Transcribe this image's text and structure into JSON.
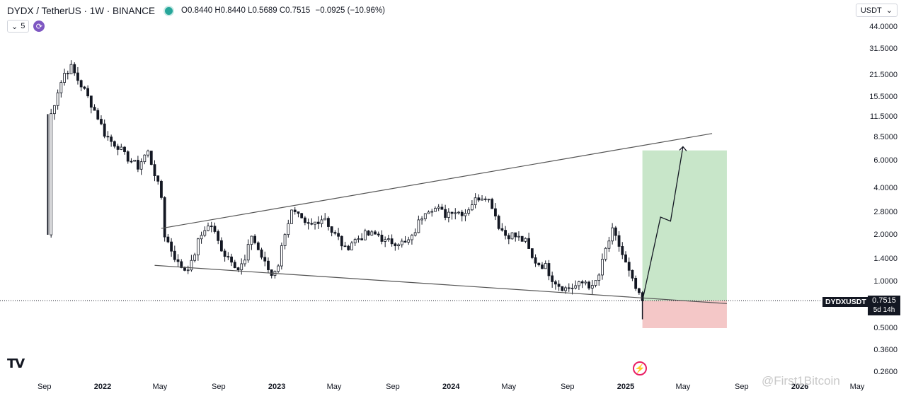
{
  "header": {
    "symbol": "DYDX / TetherUS · 1W · BINANCE",
    "open": "O0.8440",
    "high": "H0.8440",
    "low": "L0.5689",
    "close": "C0.7515",
    "change": "−0.0925 (−10.96%)",
    "status_color": "#26a69a"
  },
  "controls": {
    "interval_chevron": "⌄",
    "interval_value": "5",
    "sync_icon": "sync-icon"
  },
  "currency": {
    "label": "USDT",
    "chevron": "⌄"
  },
  "price_label": {
    "symbol": "DYDXUSDT",
    "value": "0.7515",
    "countdown": "5d 14h"
  },
  "logo_text": "TV",
  "watermark": "@First1Bitcoin",
  "colors": {
    "up": "#131722",
    "down": "#131722",
    "target_zone": "#c8e6c9",
    "stop_zone": "#f4c7c7",
    "line": "#555555"
  },
  "chart_data": {
    "type": "candlestick",
    "y_scale": "log",
    "y_axis_ticks": [
      {
        "label": "44.0000",
        "value": 44
      },
      {
        "label": "31.5000",
        "value": 31.5
      },
      {
        "label": "21.5000",
        "value": 21.5
      },
      {
        "label": "15.5000",
        "value": 15.5
      },
      {
        "label": "11.5000",
        "value": 11.5
      },
      {
        "label": "8.5000",
        "value": 8.5
      },
      {
        "label": "6.0000",
        "value": 6
      },
      {
        "label": "4.0000",
        "value": 4
      },
      {
        "label": "2.8000",
        "value": 2.8
      },
      {
        "label": "2.0000",
        "value": 2
      },
      {
        "label": "1.4000",
        "value": 1.4
      },
      {
        "label": "1.0000",
        "value": 1
      },
      {
        "label": "0.5000",
        "value": 0.5
      },
      {
        "label": "0.3600",
        "value": 0.36
      },
      {
        "label": "0.2600",
        "value": 0.26
      }
    ],
    "x_axis_ticks": [
      {
        "label": "Sep",
        "date": "2021-09-01",
        "bold": false
      },
      {
        "label": "2022",
        "date": "2022-01-01",
        "bold": true
      },
      {
        "label": "May",
        "date": "2022-05-01",
        "bold": false
      },
      {
        "label": "Sep",
        "date": "2022-09-01",
        "bold": false
      },
      {
        "label": "2023",
        "date": "2023-01-01",
        "bold": true
      },
      {
        "label": "May",
        "date": "2023-05-01",
        "bold": false
      },
      {
        "label": "Sep",
        "date": "2023-09-01",
        "bold": false
      },
      {
        "label": "2024",
        "date": "2024-01-01",
        "bold": true
      },
      {
        "label": "May",
        "date": "2024-05-01",
        "bold": false
      },
      {
        "label": "Sep",
        "date": "2024-09-01",
        "bold": false
      },
      {
        "label": "2025",
        "date": "2025-01-01",
        "bold": true
      },
      {
        "label": "May",
        "date": "2025-05-01",
        "bold": false
      },
      {
        "label": "Sep",
        "date": "2025-09-01",
        "bold": false
      },
      {
        "label": "2026",
        "date": "2026-01-01",
        "bold": true
      },
      {
        "label": "May",
        "date": "2026-05-01",
        "bold": false
      }
    ],
    "close_path": [
      [
        "2021-09-08",
        2.0
      ],
      [
        "2021-09-15",
        12
      ],
      [
        "2021-09-29",
        17
      ],
      [
        "2021-10-13",
        22
      ],
      [
        "2021-10-27",
        24
      ],
      [
        "2021-11-10",
        20
      ],
      [
        "2021-11-24",
        17
      ],
      [
        "2021-12-08",
        14
      ],
      [
        "2021-12-22",
        11.5
      ],
      [
        "2022-01-05",
        9.0
      ],
      [
        "2022-01-19",
        8.0
      ],
      [
        "2022-02-02",
        7.5
      ],
      [
        "2022-02-16",
        6.5
      ],
      [
        "2022-03-02",
        6.0
      ],
      [
        "2022-03-16",
        5.5
      ],
      [
        "2022-03-30",
        6.5
      ],
      [
        "2022-04-06",
        6.8
      ],
      [
        "2022-04-20",
        5.0
      ],
      [
        "2022-05-04",
        3.5
      ],
      [
        "2022-05-11",
        2.0
      ],
      [
        "2022-05-25",
        1.6
      ],
      [
        "2022-06-08",
        1.3
      ],
      [
        "2022-06-22",
        1.2
      ],
      [
        "2022-07-06",
        1.3
      ],
      [
        "2022-07-20",
        1.8
      ],
      [
        "2022-08-03",
        2.2
      ],
      [
        "2022-08-17",
        2.3
      ],
      [
        "2022-08-31",
        1.8
      ],
      [
        "2022-09-14",
        1.5
      ],
      [
        "2022-09-28",
        1.4
      ],
      [
        "2022-10-12",
        1.2
      ],
      [
        "2022-10-26",
        1.35
      ],
      [
        "2022-11-09",
        2.0
      ],
      [
        "2022-11-23",
        1.6
      ],
      [
        "2022-12-07",
        1.3
      ],
      [
        "2022-12-21",
        1.1
      ],
      [
        "2023-01-04",
        1.3
      ],
      [
        "2023-01-18",
        2.1
      ],
      [
        "2023-02-01",
        2.8
      ],
      [
        "2023-02-15",
        2.6
      ],
      [
        "2023-03-01",
        2.3
      ],
      [
        "2023-03-15",
        2.3
      ],
      [
        "2023-03-29",
        2.5
      ],
      [
        "2023-04-12",
        2.6
      ],
      [
        "2023-04-26",
        2.1
      ],
      [
        "2023-05-10",
        1.9
      ],
      [
        "2023-05-24",
        1.6
      ],
      [
        "2023-06-07",
        1.8
      ],
      [
        "2023-06-21",
        1.9
      ],
      [
        "2023-07-05",
        2.0
      ],
      [
        "2023-07-19",
        2.0
      ],
      [
        "2023-08-02",
        2.0
      ],
      [
        "2023-08-16",
        1.8
      ],
      [
        "2023-08-30",
        1.8
      ],
      [
        "2023-09-13",
        1.8
      ],
      [
        "2023-09-27",
        1.75
      ],
      [
        "2023-10-11",
        1.9
      ],
      [
        "2023-10-25",
        2.4
      ],
      [
        "2023-11-08",
        2.9
      ],
      [
        "2023-11-22",
        3.0
      ],
      [
        "2023-12-06",
        2.9
      ],
      [
        "2023-12-20",
        2.7
      ],
      [
        "2024-01-03",
        2.9
      ],
      [
        "2024-01-17",
        2.8
      ],
      [
        "2024-01-31",
        2.8
      ],
      [
        "2024-02-14",
        3.2
      ],
      [
        "2024-02-28",
        3.5
      ],
      [
        "2024-03-13",
        3.6
      ],
      [
        "2024-03-27",
        3.1
      ],
      [
        "2024-04-10",
        2.3
      ],
      [
        "2024-04-24",
        2.0
      ],
      [
        "2024-05-08",
        2.0
      ],
      [
        "2024-05-22",
        1.9
      ],
      [
        "2024-06-05",
        1.8
      ],
      [
        "2024-06-19",
        1.4
      ],
      [
        "2024-07-03",
        1.3
      ],
      [
        "2024-07-17",
        1.25
      ],
      [
        "2024-07-31",
        1.05
      ],
      [
        "2024-08-14",
        0.95
      ],
      [
        "2024-08-28",
        0.9
      ],
      [
        "2024-09-11",
        0.92
      ],
      [
        "2024-09-25",
        0.95
      ],
      [
        "2024-10-09",
        1.0
      ],
      [
        "2024-10-23",
        0.9
      ],
      [
        "2024-11-06",
        1.1
      ],
      [
        "2024-11-20",
        1.6
      ],
      [
        "2024-12-04",
        2.1
      ],
      [
        "2024-12-18",
        1.7
      ],
      [
        "2025-01-01",
        1.3
      ],
      [
        "2025-01-15",
        1.0
      ],
      [
        "2025-01-29",
        0.8
      ],
      [
        "2025-02-05",
        0.7515
      ]
    ],
    "trendlines": [
      {
        "name": "upper",
        "from": [
          "2022-05-04",
          2.2
        ],
        "to": [
          "2025-07-01",
          9.0
        ]
      },
      {
        "name": "lower",
        "from": [
          "2022-04-20",
          1.27
        ],
        "to": [
          "2025-08-01",
          0.72
        ]
      }
    ],
    "projection_path": [
      [
        "2025-02-05",
        0.7515
      ],
      [
        "2025-03-15",
        2.6
      ],
      [
        "2025-04-05",
        2.45
      ],
      [
        "2025-05-01",
        7.4
      ]
    ],
    "long_position": {
      "entry": 0.7515,
      "target": 7.0,
      "stop": 0.5,
      "from": "2025-02-05",
      "to": "2025-08-01"
    },
    "last_price": 0.7515
  }
}
